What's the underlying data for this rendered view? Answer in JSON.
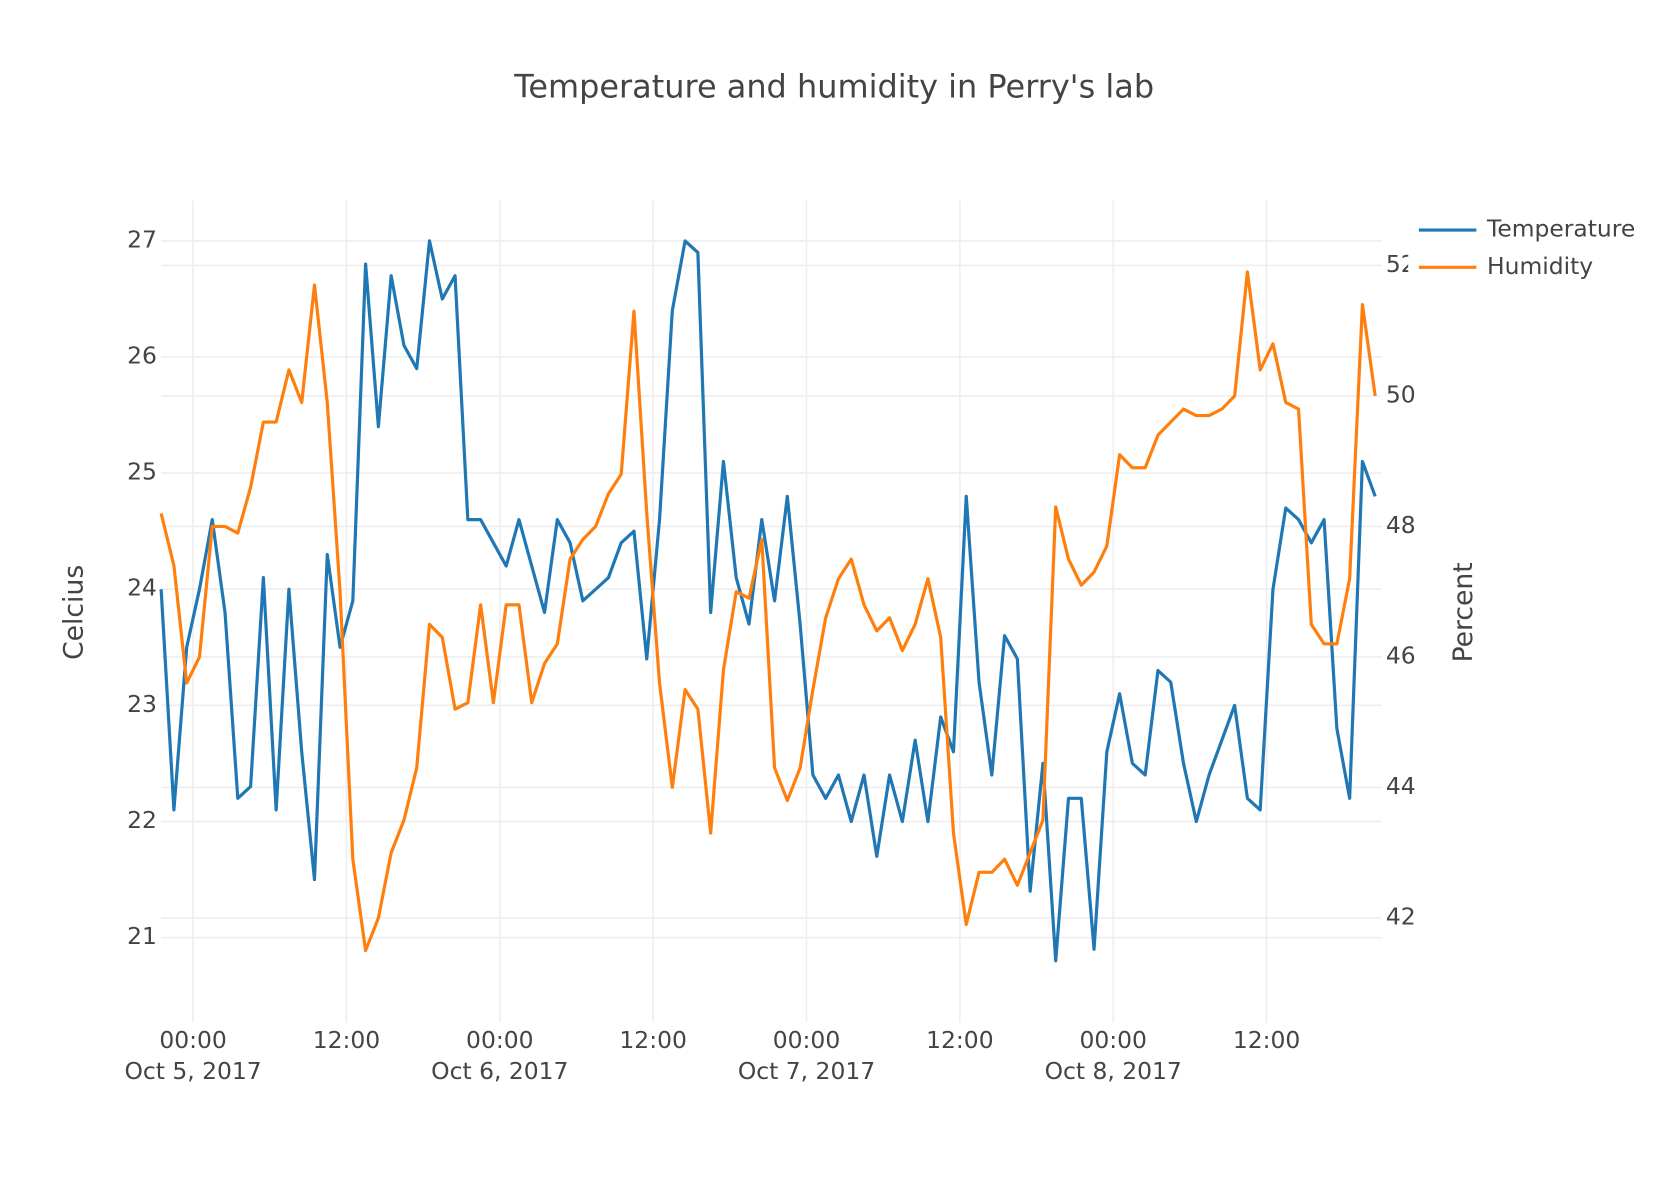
{
  "chart_data": {
    "type": "line",
    "title": "Temperature and humidity in Perry's lab",
    "y_label": "Celcius",
    "y2_label": "Percent",
    "x": [
      "2017-10-04 21:30",
      "2017-10-04 22:30",
      "2017-10-04 23:30",
      "2017-10-05 00:30",
      "2017-10-05 01:30",
      "2017-10-05 02:30",
      "2017-10-05 03:30",
      "2017-10-05 04:30",
      "2017-10-05 05:30",
      "2017-10-05 06:30",
      "2017-10-05 07:30",
      "2017-10-05 08:30",
      "2017-10-05 09:30",
      "2017-10-05 10:30",
      "2017-10-05 11:30",
      "2017-10-05 12:30",
      "2017-10-05 13:30",
      "2017-10-05 14:30",
      "2017-10-05 15:30",
      "2017-10-05 16:30",
      "2017-10-05 17:30",
      "2017-10-05 18:30",
      "2017-10-05 19:30",
      "2017-10-05 20:30",
      "2017-10-05 21:30",
      "2017-10-05 22:30",
      "2017-10-05 23:30",
      "2017-10-06 00:30",
      "2017-10-06 01:30",
      "2017-10-06 02:30",
      "2017-10-06 03:30",
      "2017-10-06 04:30",
      "2017-10-06 05:30",
      "2017-10-06 06:30",
      "2017-10-06 07:30",
      "2017-10-06 08:30",
      "2017-10-06 09:30",
      "2017-10-06 10:30",
      "2017-10-06 11:30",
      "2017-10-06 12:30",
      "2017-10-06 13:30",
      "2017-10-06 14:30",
      "2017-10-06 15:30",
      "2017-10-06 16:30",
      "2017-10-06 17:30",
      "2017-10-06 18:30",
      "2017-10-06 19:30",
      "2017-10-06 20:30",
      "2017-10-06 21:30",
      "2017-10-06 22:30",
      "2017-10-06 23:30",
      "2017-10-07 00:30",
      "2017-10-07 01:30",
      "2017-10-07 02:30",
      "2017-10-07 03:30",
      "2017-10-07 04:30",
      "2017-10-07 05:30",
      "2017-10-07 06:30",
      "2017-10-07 07:30",
      "2017-10-07 08:30",
      "2017-10-07 09:30",
      "2017-10-07 10:30",
      "2017-10-07 11:30",
      "2017-10-07 12:30",
      "2017-10-07 13:30",
      "2017-10-07 14:30",
      "2017-10-07 15:30",
      "2017-10-07 16:30",
      "2017-10-07 17:30",
      "2017-10-07 18:30",
      "2017-10-07 19:30",
      "2017-10-07 20:30",
      "2017-10-07 21:30",
      "2017-10-07 22:30",
      "2017-10-07 23:30",
      "2017-10-08 00:30",
      "2017-10-08 01:30",
      "2017-10-08 02:30",
      "2017-10-08 03:30",
      "2017-10-08 04:30",
      "2017-10-08 05:30",
      "2017-10-08 06:30",
      "2017-10-08 07:30",
      "2017-10-08 08:30",
      "2017-10-08 09:30",
      "2017-10-08 10:30",
      "2017-10-08 11:30",
      "2017-10-08 12:30",
      "2017-10-08 13:30",
      "2017-10-08 14:30",
      "2017-10-08 15:30",
      "2017-10-08 16:30",
      "2017-10-08 17:30",
      "2017-10-08 18:30",
      "2017-10-08 19:30",
      "2017-10-08 20:30"
    ],
    "series": [
      {
        "name": "Temperature",
        "color": "#1f77b4",
        "values": [
          24.0,
          22.1,
          23.5,
          24.0,
          24.6,
          23.8,
          22.2,
          22.3,
          24.1,
          22.1,
          24.0,
          22.6,
          21.5,
          24.3,
          23.5,
          23.9,
          26.8,
          25.4,
          26.7,
          26.1,
          25.9,
          27.0,
          26.5,
          26.7,
          24.6,
          24.6,
          24.4,
          24.2,
          24.6,
          24.2,
          23.8,
          24.6,
          24.4,
          23.9,
          24.0,
          24.1,
          24.4,
          24.5,
          23.4,
          24.6,
          26.4,
          27.0,
          26.9,
          23.8,
          25.1,
          24.1,
          23.7,
          24.6,
          23.9,
          24.8,
          23.7,
          22.4,
          22.2,
          22.4,
          22.0,
          22.4,
          21.7,
          22.4,
          22.0,
          22.7,
          22.0,
          22.9,
          22.6,
          24.8,
          23.2,
          22.4,
          23.6,
          23.4,
          21.4,
          22.5,
          20.8,
          22.2,
          22.2,
          20.9,
          22.6,
          23.1,
          22.5,
          22.4,
          23.3,
          23.2,
          22.5,
          22.0,
          22.4,
          22.7,
          23.0,
          22.2,
          22.1,
          24.0,
          24.7,
          24.6,
          24.4,
          24.6,
          22.8,
          22.2,
          25.1,
          24.8
        ]
      },
      {
        "name": "Humidity",
        "color": "#ff7f0e",
        "axis": "y2",
        "values": [
          48.2,
          47.4,
          45.6,
          46.0,
          48.0,
          48.0,
          47.9,
          48.6,
          49.6,
          49.6,
          50.4,
          49.9,
          51.7,
          49.9,
          47.0,
          42.9,
          41.5,
          42.0,
          43.0,
          43.5,
          44.3,
          46.5,
          46.3,
          45.2,
          45.3,
          46.8,
          45.3,
          46.8,
          46.8,
          45.3,
          45.9,
          46.2,
          47.5,
          47.8,
          48.0,
          48.5,
          48.8,
          51.3,
          48.2,
          45.6,
          44.0,
          45.5,
          45.2,
          43.3,
          45.8,
          47.0,
          46.9,
          47.8,
          44.3,
          43.8,
          44.3,
          45.5,
          46.6,
          47.2,
          47.5,
          46.8,
          46.4,
          46.6,
          46.1,
          46.5,
          47.2,
          46.3,
          43.3,
          41.9,
          42.7,
          42.7,
          42.9,
          42.5,
          43.0,
          43.5,
          48.3,
          47.5,
          47.1,
          47.3,
          47.7,
          49.1,
          48.9,
          48.9,
          49.4,
          49.6,
          49.8,
          49.7,
          49.7,
          49.8,
          50.0,
          51.9,
          50.4,
          50.8,
          49.9,
          49.8,
          46.5,
          46.2,
          46.2,
          47.2,
          51.4,
          50.0
        ]
      }
    ],
    "xlim": [
      "2017-10-04 21:30",
      "2017-10-08 21:00"
    ],
    "xticks": [
      {
        "value": "2017-10-05 00:00",
        "label": "00:00"
      },
      {
        "value": "2017-10-05 12:00",
        "label": "12:00"
      },
      {
        "value": "2017-10-06 00:00",
        "label": "00:00"
      },
      {
        "value": "2017-10-06 12:00",
        "label": "12:00"
      },
      {
        "value": "2017-10-07 00:00",
        "label": "00:00"
      },
      {
        "value": "2017-10-07 12:00",
        "label": "12:00"
      },
      {
        "value": "2017-10-08 00:00",
        "label": "00:00"
      },
      {
        "value": "2017-10-08 12:00",
        "label": "12:00"
      }
    ],
    "x_date_labels": [
      {
        "value": "2017-10-05 00:00",
        "label": "Oct 5, 2017"
      },
      {
        "value": "2017-10-06 00:00",
        "label": "Oct 6, 2017"
      },
      {
        "value": "2017-10-07 00:00",
        "label": "Oct 7, 2017"
      },
      {
        "value": "2017-10-08 00:00",
        "label": "Oct 8, 2017"
      }
    ],
    "ylim": [
      20.27,
      27.35
    ],
    "yticks": [
      21,
      22,
      23,
      24,
      25,
      26,
      27
    ],
    "y2lim": [
      40.4,
      53.0
    ],
    "y2ticks": [
      42,
      44,
      46,
      48,
      50,
      52
    ],
    "grid": true,
    "legend": "outside-right"
  }
}
